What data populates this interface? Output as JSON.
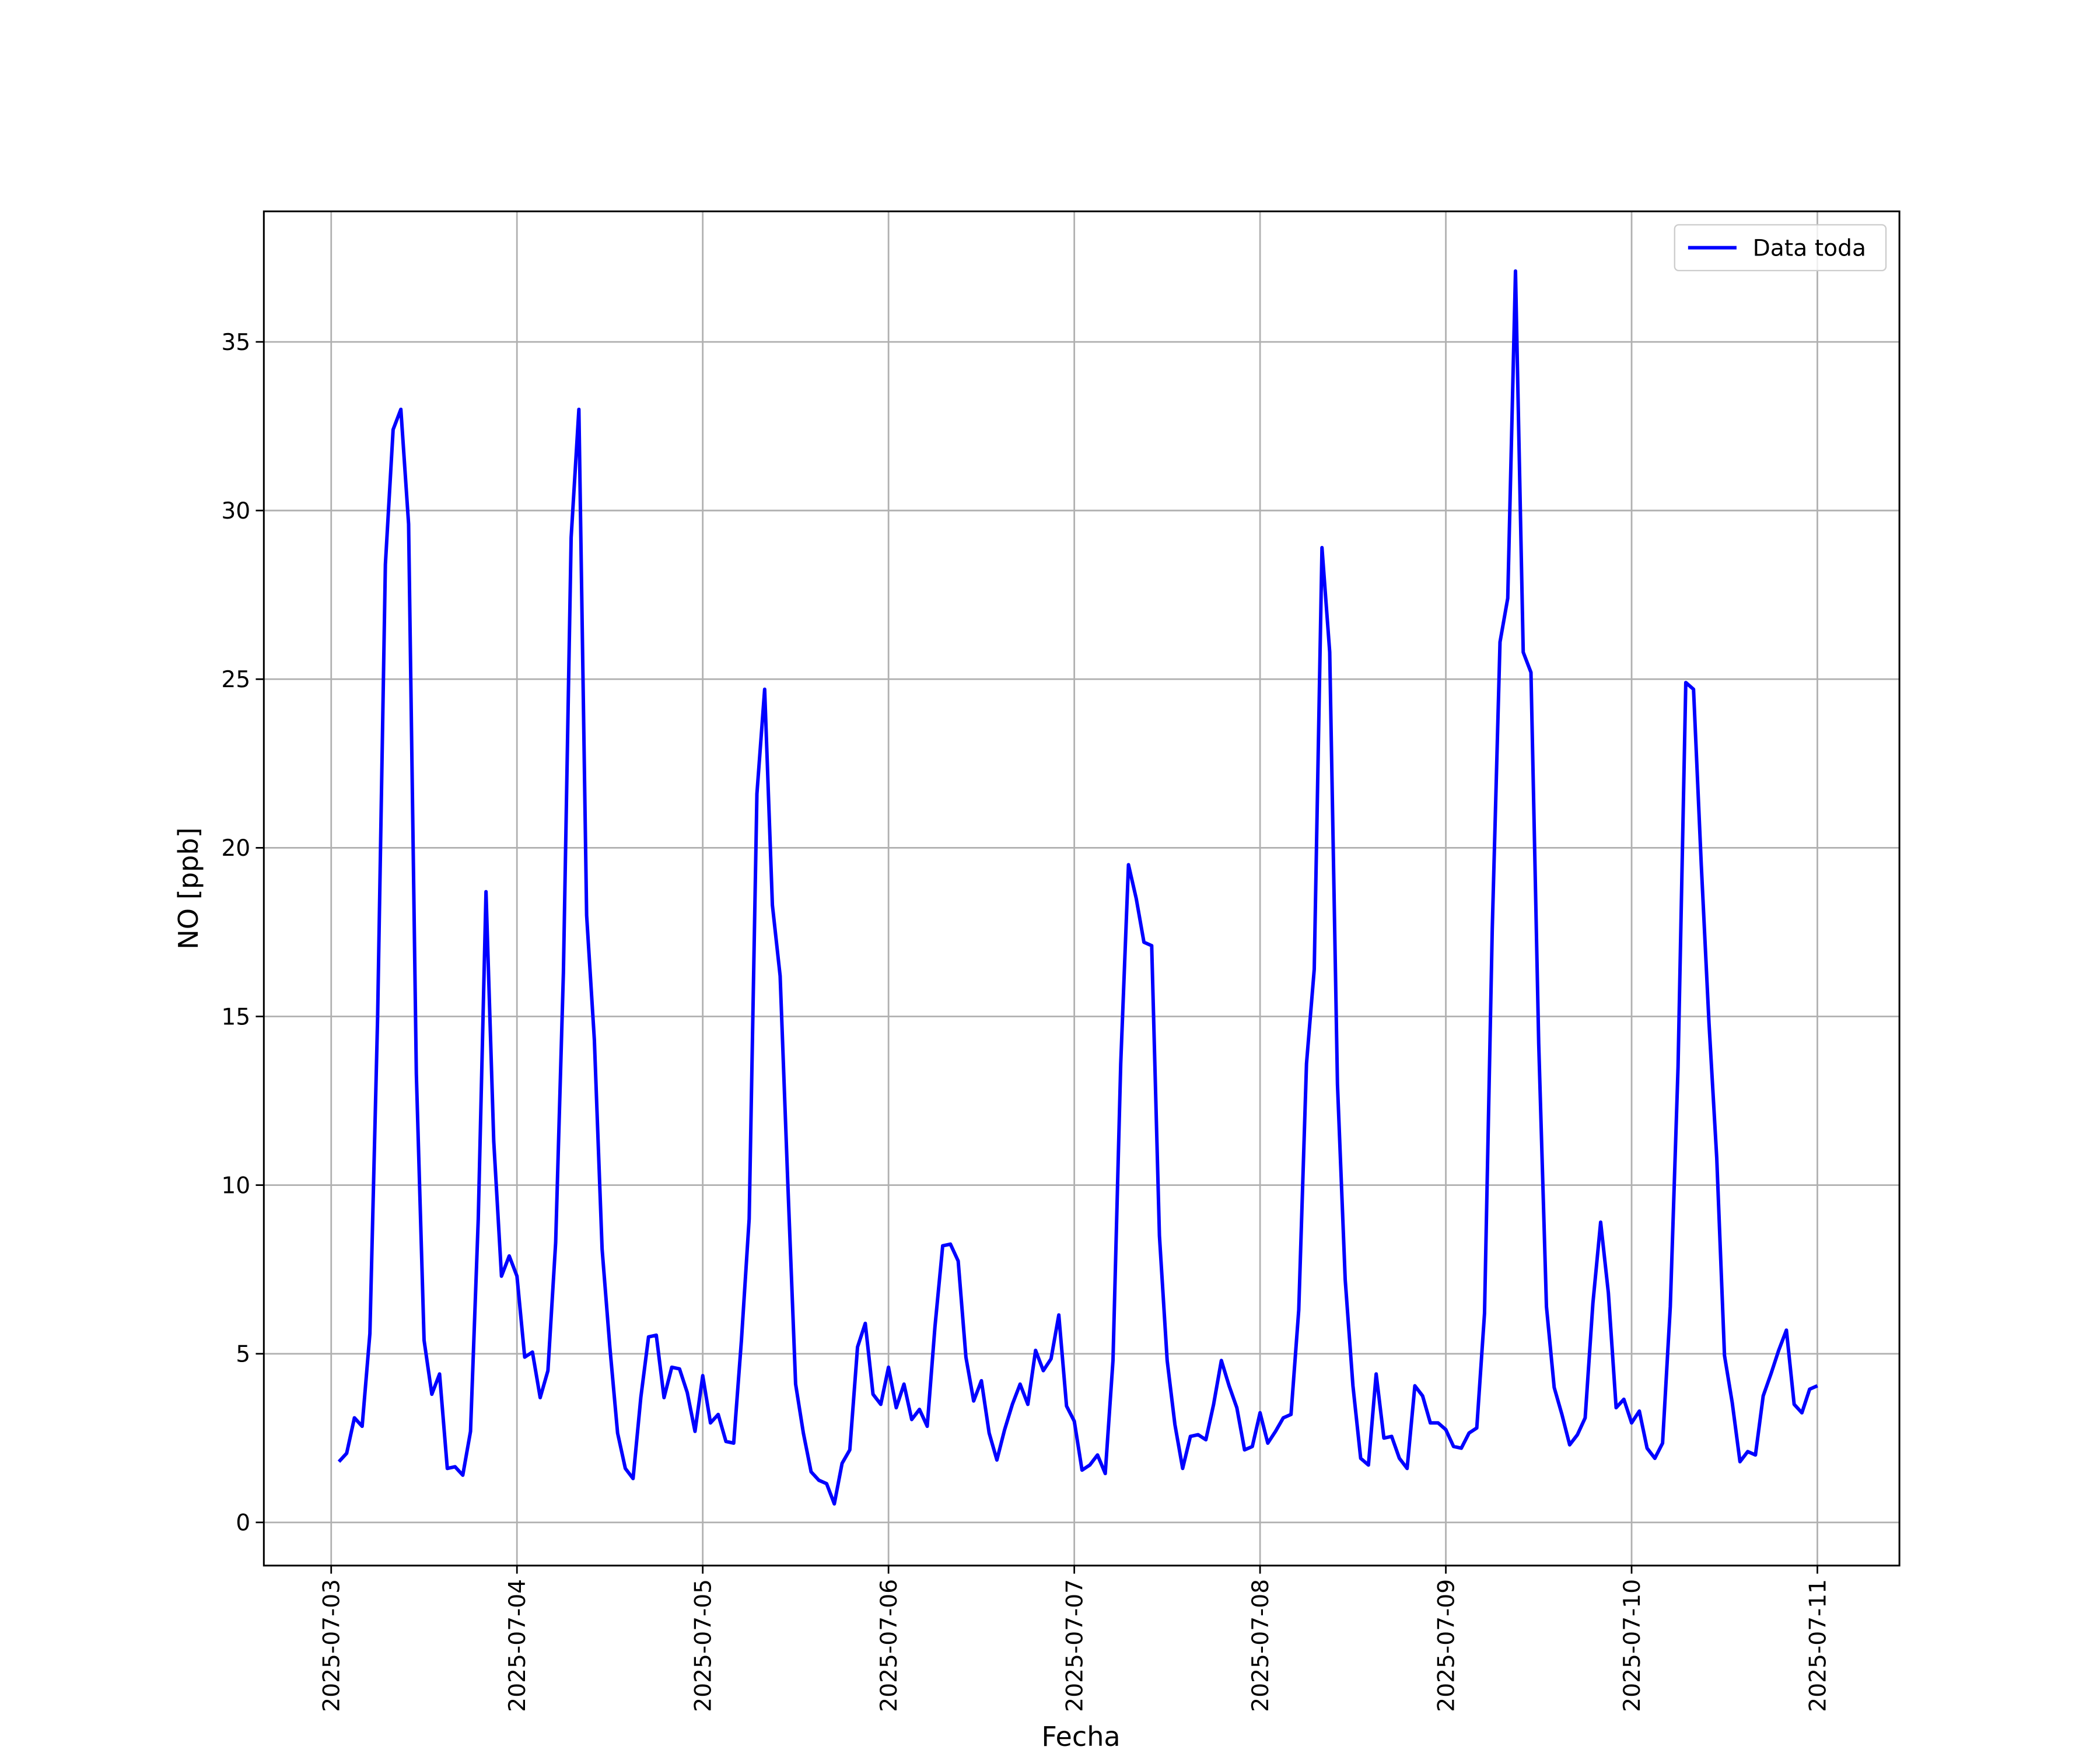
{
  "chart_data": {
    "type": "line",
    "xlabel": "Fecha",
    "ylabel": "NO [ppb]",
    "x": [
      "2025-07-03 01:00",
      "2025-07-03 02:00",
      "2025-07-03 03:00",
      "2025-07-03 04:00",
      "2025-07-03 05:00",
      "2025-07-03 06:00",
      "2025-07-03 07:00",
      "2025-07-03 08:00",
      "2025-07-03 09:00",
      "2025-07-03 10:00",
      "2025-07-03 11:00",
      "2025-07-03 12:00",
      "2025-07-03 13:00",
      "2025-07-03 14:00",
      "2025-07-03 15:00",
      "2025-07-03 16:00",
      "2025-07-03 17:00",
      "2025-07-03 18:00",
      "2025-07-03 19:00",
      "2025-07-03 20:00",
      "2025-07-03 21:00",
      "2025-07-03 22:00",
      "2025-07-03 23:00",
      "2025-07-04 00:00",
      "2025-07-04 01:00",
      "2025-07-04 02:00",
      "2025-07-04 03:00",
      "2025-07-04 04:00",
      "2025-07-04 05:00",
      "2025-07-04 06:00",
      "2025-07-04 07:00",
      "2025-07-04 08:00",
      "2025-07-04 09:00",
      "2025-07-04 10:00",
      "2025-07-04 11:00",
      "2025-07-04 12:00",
      "2025-07-04 13:00",
      "2025-07-04 14:00",
      "2025-07-04 15:00",
      "2025-07-04 16:00",
      "2025-07-04 17:00",
      "2025-07-04 18:00",
      "2025-07-04 19:00",
      "2025-07-04 20:00",
      "2025-07-04 21:00",
      "2025-07-04 22:00",
      "2025-07-04 23:00",
      "2025-07-05 00:00",
      "2025-07-05 01:00",
      "2025-07-05 02:00",
      "2025-07-05 03:00",
      "2025-07-05 04:00",
      "2025-07-05 05:00",
      "2025-07-05 06:00",
      "2025-07-05 07:00",
      "2025-07-05 08:00",
      "2025-07-05 09:00",
      "2025-07-05 10:00",
      "2025-07-05 11:00",
      "2025-07-05 12:00",
      "2025-07-05 13:00",
      "2025-07-05 14:00",
      "2025-07-05 15:00",
      "2025-07-05 16:00",
      "2025-07-05 17:00",
      "2025-07-05 18:00",
      "2025-07-05 19:00",
      "2025-07-05 20:00",
      "2025-07-05 21:00",
      "2025-07-05 22:00",
      "2025-07-05 23:00",
      "2025-07-06 00:00",
      "2025-07-06 01:00",
      "2025-07-06 02:00",
      "2025-07-06 03:00",
      "2025-07-06 04:00",
      "2025-07-06 05:00",
      "2025-07-06 06:00",
      "2025-07-06 07:00",
      "2025-07-06 08:00",
      "2025-07-06 09:00",
      "2025-07-06 10:00",
      "2025-07-06 11:00",
      "2025-07-06 12:00",
      "2025-07-06 13:00",
      "2025-07-06 14:00",
      "2025-07-06 15:00",
      "2025-07-06 16:00",
      "2025-07-06 17:00",
      "2025-07-06 18:00",
      "2025-07-06 19:00",
      "2025-07-06 20:00",
      "2025-07-06 21:00",
      "2025-07-06 22:00",
      "2025-07-06 23:00",
      "2025-07-07 00:00",
      "2025-07-07 01:00",
      "2025-07-07 02:00",
      "2025-07-07 03:00",
      "2025-07-07 04:00",
      "2025-07-07 05:00",
      "2025-07-07 06:00",
      "2025-07-07 07:00",
      "2025-07-07 08:00",
      "2025-07-07 09:00",
      "2025-07-07 10:00",
      "2025-07-07 11:00",
      "2025-07-07 12:00",
      "2025-07-07 13:00",
      "2025-07-07 14:00",
      "2025-07-07 15:00",
      "2025-07-07 16:00",
      "2025-07-07 17:00",
      "2025-07-07 18:00",
      "2025-07-07 19:00",
      "2025-07-07 20:00",
      "2025-07-07 21:00",
      "2025-07-07 22:00",
      "2025-07-07 23:00",
      "2025-07-08 00:00",
      "2025-07-08 01:00",
      "2025-07-08 02:00",
      "2025-07-08 03:00",
      "2025-07-08 04:00",
      "2025-07-08 05:00",
      "2025-07-08 06:00",
      "2025-07-08 07:00",
      "2025-07-08 08:00",
      "2025-07-08 09:00",
      "2025-07-08 10:00",
      "2025-07-08 11:00",
      "2025-07-08 12:00",
      "2025-07-08 13:00",
      "2025-07-08 14:00",
      "2025-07-08 15:00",
      "2025-07-08 16:00",
      "2025-07-08 17:00",
      "2025-07-08 18:00",
      "2025-07-08 19:00",
      "2025-07-08 20:00",
      "2025-07-08 21:00",
      "2025-07-08 22:00",
      "2025-07-08 23:00",
      "2025-07-09 00:00",
      "2025-07-09 01:00",
      "2025-07-09 02:00",
      "2025-07-09 03:00",
      "2025-07-09 04:00",
      "2025-07-09 05:00",
      "2025-07-09 06:00",
      "2025-07-09 07:00",
      "2025-07-09 08:00",
      "2025-07-09 09:00",
      "2025-07-09 10:00",
      "2025-07-09 11:00",
      "2025-07-09 12:00",
      "2025-07-09 13:00",
      "2025-07-09 14:00",
      "2025-07-09 15:00",
      "2025-07-09 16:00",
      "2025-07-09 17:00",
      "2025-07-09 18:00",
      "2025-07-09 19:00",
      "2025-07-09 20:00",
      "2025-07-09 21:00",
      "2025-07-09 22:00",
      "2025-07-09 23:00",
      "2025-07-10 00:00",
      "2025-07-10 01:00",
      "2025-07-10 02:00",
      "2025-07-10 03:00",
      "2025-07-10 04:00",
      "2025-07-10 05:00",
      "2025-07-10 06:00",
      "2025-07-10 07:00",
      "2025-07-10 08:00",
      "2025-07-10 09:00",
      "2025-07-10 10:00",
      "2025-07-10 11:00",
      "2025-07-10 12:00",
      "2025-07-10 13:00",
      "2025-07-10 14:00",
      "2025-07-10 15:00",
      "2025-07-10 16:00",
      "2025-07-10 17:00",
      "2025-07-10 18:00",
      "2025-07-10 19:00",
      "2025-07-10 20:00",
      "2025-07-10 21:00",
      "2025-07-10 22:00",
      "2025-07-10 23:00",
      "2025-07-11 00:00"
    ],
    "series": [
      {
        "name": "Data toda",
        "color": "#0000ff",
        "values": [
          1.8,
          2.05,
          3.1,
          2.85,
          5.6,
          15,
          28.4,
          32.4,
          33,
          29.6,
          13.3,
          5.4,
          3.8,
          4.4,
          1.6,
          1.65,
          1.4,
          2.7,
          9,
          18.7,
          11.3,
          7.3,
          7.9,
          7.3,
          4.9,
          5.05,
          3.7,
          4.5,
          8.3,
          16.3,
          29.2,
          33,
          18,
          14.3,
          8.1,
          5.2,
          2.65,
          1.6,
          1.3,
          3.7,
          5.5,
          5.55,
          3.7,
          4.6,
          4.55,
          3.85,
          2.7,
          4.35,
          2.95,
          3.2,
          2.4,
          2.35,
          5.4,
          9,
          21.6,
          24.7,
          18.3,
          16.2,
          10,
          4.1,
          2.65,
          1.5,
          1.25,
          1.15,
          0.55,
          1.75,
          2.15,
          5.2,
          5.9,
          3.8,
          3.5,
          4.6,
          3.4,
          4.1,
          3.05,
          3.35,
          2.85,
          5.8,
          8.2,
          8.25,
          7.75,
          4.9,
          3.6,
          4.2,
          2.65,
          1.85,
          2.75,
          3.5,
          4.1,
          3.5,
          5.1,
          4.5,
          4.85,
          6.15,
          3.45,
          3,
          1.55,
          1.7,
          2,
          1.45,
          4.8,
          13.6,
          19.5,
          18.5,
          17.2,
          17.1,
          8.5,
          4.8,
          2.9,
          1.6,
          2.55,
          2.6,
          2.45,
          3.5,
          4.8,
          4.05,
          3.4,
          2.15,
          2.25,
          3.25,
          2.35,
          2.7,
          3.1,
          3.2,
          6.3,
          13.6,
          16.4,
          28.9,
          25.8,
          13,
          7.2,
          4.05,
          1.9,
          1.7,
          4.4,
          2.5,
          2.55,
          1.9,
          1.6,
          4.05,
          3.75,
          2.95,
          2.95,
          2.75,
          2.25,
          2.2,
          2.65,
          2.8,
          6.2,
          17.6,
          26.1,
          27.4,
          37.1,
          25.8,
          25.2,
          14.2,
          6.4,
          4,
          3.2,
          2.3,
          2.6,
          3.1,
          6.5,
          8.9,
          6.8,
          3.4,
          3.65,
          2.95,
          3.3,
          2.2,
          1.9,
          2.35,
          6.4,
          13.5,
          24.9,
          24.7,
          19.5,
          14.8,
          10.8,
          4.95,
          3.55,
          1.8,
          2.1,
          2,
          3.75,
          4.4,
          5.1,
          5.7,
          3.5,
          3.25,
          3.95,
          4.05
        ]
      }
    ],
    "xlim": [
      "2025-07-02 15:18",
      "2025-07-11 10:36"
    ],
    "xticks": [
      "2025-07-03",
      "2025-07-04",
      "2025-07-05",
      "2025-07-06",
      "2025-07-07",
      "2025-07-08",
      "2025-07-09",
      "2025-07-10",
      "2025-07-11"
    ],
    "ylim": [
      -1.28,
      38.87
    ],
    "yticks": [
      0,
      5,
      10,
      15,
      20,
      25,
      30,
      35
    ],
    "grid": true,
    "legend": "upper right"
  }
}
